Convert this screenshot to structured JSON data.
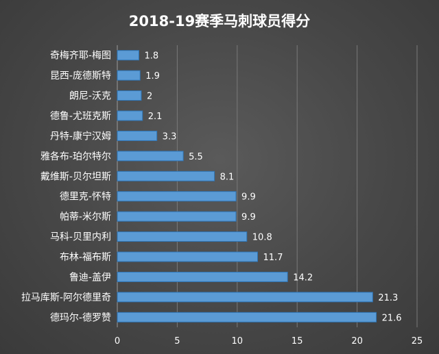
{
  "chart_data": {
    "type": "bar",
    "orientation": "horizontal",
    "title": "2018-19赛季马刺球员得分",
    "categories": [
      "德玛尔-德罗赞",
      "拉马库斯-阿尔德里奇",
      "鲁迪-盖伊",
      "布林-福布斯",
      "马科-贝里内利",
      "帕蒂-米尔斯",
      "德里克-怀特",
      "戴维斯-贝尔坦斯",
      "雅各布-珀尔特尔",
      "丹特-康宁汉姆",
      "德鲁-尤班克斯",
      "朗尼-沃克",
      "昆西-庞德斯特",
      "奇梅齐耶-梅图"
    ],
    "values": [
      21.6,
      21.3,
      14.2,
      11.7,
      10.8,
      9.9,
      9.9,
      8.1,
      5.5,
      3.3,
      2.1,
      2,
      1.9,
      1.8
    ],
    "value_labels": [
      "21.6",
      "21.3",
      "14.2",
      "11.7",
      "10.8",
      "9.9",
      "9.9",
      "8.1",
      "5.5",
      "3.3",
      "2.1",
      "2",
      "1.9",
      "1.8"
    ],
    "xlim": [
      0,
      25
    ],
    "xticks": [
      "0",
      "5",
      "10",
      "15",
      "20",
      "25"
    ],
    "xlabel": "",
    "ylabel": "",
    "grid": true,
    "legend": "none",
    "colors": {
      "bar": "#5b9bd5",
      "bar_edge": "#2e75b6",
      "text": "#ffffff",
      "grid": "#7a7a7a",
      "background": "#474747"
    }
  }
}
